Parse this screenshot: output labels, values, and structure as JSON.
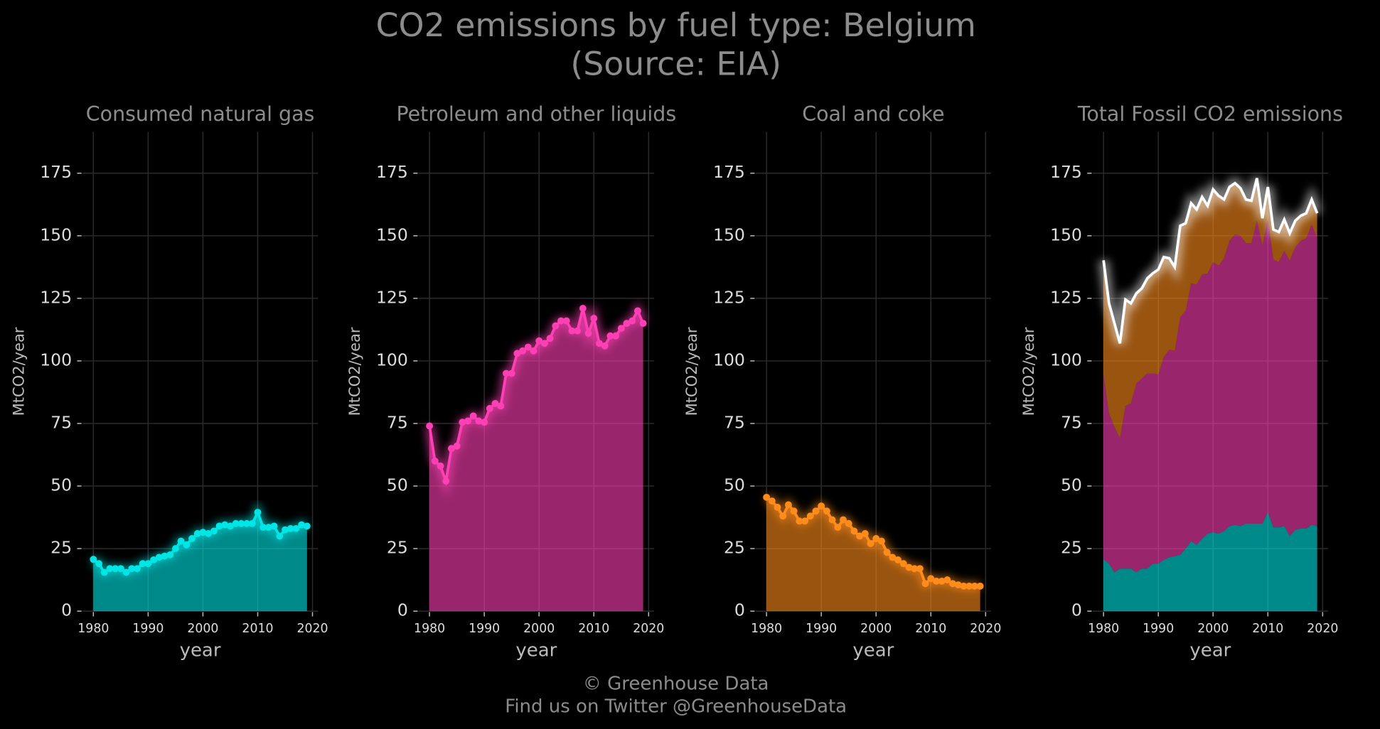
{
  "title": "CO2 emissions by fuel type: Belgium",
  "subtitle": "(Source: EIA)",
  "footer": [
    "© Greenhouse Data",
    "Find us on Twitter @GreenhouseData"
  ],
  "chart_data": [
    {
      "type": "area",
      "title": "Consumed natural gas",
      "xlabel": "year",
      "ylabel": "MtCO2/year",
      "x": [
        1980,
        1981,
        1982,
        1983,
        1984,
        1985,
        1986,
        1987,
        1988,
        1989,
        1990,
        1991,
        1992,
        1993,
        1994,
        1995,
        1996,
        1997,
        1998,
        1999,
        2000,
        2001,
        2002,
        2003,
        2004,
        2005,
        2006,
        2007,
        2008,
        2009,
        2010,
        2011,
        2012,
        2013,
        2014,
        2015,
        2016,
        2017,
        2018,
        2019
      ],
      "values": [
        20.7,
        19,
        15.5,
        17,
        17,
        17,
        15.5,
        17,
        17,
        19,
        19,
        20.5,
        21.5,
        22,
        22.5,
        25,
        28,
        26.5,
        29,
        31,
        31.5,
        31,
        32,
        34,
        34.5,
        34,
        35,
        35,
        35,
        35,
        39.5,
        33.5,
        33.5,
        34,
        30,
        32.5,
        33,
        33,
        34.5,
        34
      ],
      "color": "#00e5e5",
      "xlim": [
        1978,
        2021
      ],
      "ylim": [
        0,
        191.5
      ],
      "xticks": [
        1980,
        1990,
        2000,
        2010,
        2020
      ],
      "yticks": [
        0,
        25,
        50,
        75,
        100,
        125,
        150,
        175
      ],
      "grid": true
    },
    {
      "type": "area",
      "title": "Petroleum and other liquids",
      "xlabel": "year",
      "ylabel": "MtCO2/year",
      "x": [
        1980,
        1981,
        1982,
        1983,
        1984,
        1985,
        1986,
        1987,
        1988,
        1989,
        1990,
        1991,
        1992,
        1993,
        1994,
        1995,
        1996,
        1997,
        1998,
        1999,
        2000,
        2001,
        2002,
        2003,
        2004,
        2005,
        2006,
        2007,
        2008,
        2009,
        2010,
        2011,
        2012,
        2013,
        2014,
        2015,
        2016,
        2017,
        2018,
        2019
      ],
      "values": [
        74,
        60,
        58,
        52,
        65,
        66,
        75.5,
        76,
        78,
        76,
        75.5,
        81,
        83,
        82,
        95,
        95,
        103,
        104,
        105.5,
        104,
        108,
        107,
        109,
        114,
        116,
        116,
        112,
        112,
        121,
        111,
        117,
        107,
        106,
        110,
        110,
        113,
        115,
        116,
        120,
        115
      ],
      "color": "#ff3fb4",
      "xlim": [
        1978,
        2021
      ],
      "ylim": [
        0,
        191.5
      ],
      "xticks": [
        1980,
        1990,
        2000,
        2010,
        2020
      ],
      "yticks": [
        0,
        25,
        50,
        75,
        100,
        125,
        150,
        175
      ],
      "grid": true
    },
    {
      "type": "area",
      "title": "Coal and coke",
      "xlabel": "year",
      "ylabel": "MtCO2/year",
      "x": [
        1980,
        1981,
        1982,
        1983,
        1984,
        1985,
        1986,
        1987,
        1988,
        1989,
        1990,
        1991,
        1992,
        1993,
        1994,
        1995,
        1996,
        1997,
        1998,
        1999,
        2000,
        2001,
        2002,
        2003,
        2004,
        2005,
        2006,
        2007,
        2008,
        2009,
        2010,
        2011,
        2012,
        2013,
        2014,
        2015,
        2016,
        2017,
        2018,
        2019
      ],
      "values": [
        45.5,
        44,
        41.5,
        38,
        42.5,
        40,
        36,
        36,
        38,
        40,
        42,
        40,
        36.5,
        33.5,
        36.5,
        35,
        32,
        30,
        31,
        27,
        29,
        28,
        23.5,
        21.5,
        20.5,
        19,
        17.5,
        17,
        17,
        11,
        13,
        12,
        12,
        12.5,
        11,
        10.5,
        10,
        10,
        10,
        10
      ],
      "color": "#ff8c1a",
      "xlim": [
        1978,
        2021
      ],
      "ylim": [
        0,
        191.5
      ],
      "xticks": [
        1980,
        1990,
        2000,
        2010,
        2020
      ],
      "yticks": [
        0,
        25,
        50,
        75,
        100,
        125,
        150,
        175
      ],
      "grid": true
    },
    {
      "type": "stacked_area",
      "title": "Total Fossil CO2 emissions",
      "xlabel": "year",
      "ylabel": "MtCO2/year",
      "x": [
        1980,
        1981,
        1982,
        1983,
        1984,
        1985,
        1986,
        1987,
        1988,
        1989,
        1990,
        1991,
        1992,
        1993,
        1994,
        1995,
        1996,
        1997,
        1998,
        1999,
        2000,
        2001,
        2002,
        2003,
        2004,
        2005,
        2006,
        2007,
        2008,
        2009,
        2010,
        2011,
        2012,
        2013,
        2014,
        2015,
        2016,
        2017,
        2018,
        2019
      ],
      "series": [
        {
          "color": "#00e5e5",
          "values": [
            20.7,
            19,
            15.5,
            17,
            17,
            17,
            15.5,
            17,
            17,
            19,
            19,
            20.5,
            21.5,
            22,
            22.5,
            25,
            28,
            26.5,
            29,
            31,
            31.5,
            31,
            32,
            34,
            34.5,
            34,
            35,
            35,
            35,
            35,
            39.5,
            33.5,
            33.5,
            34,
            30,
            32.5,
            33,
            33,
            34.5,
            34
          ]
        },
        {
          "color": "#ff3fb4",
          "values": [
            74,
            60,
            58,
            52,
            65,
            66,
            75.5,
            76,
            78,
            76,
            75.5,
            81,
            83,
            82,
            95,
            95,
            103,
            104,
            105.5,
            104,
            108,
            107,
            109,
            114,
            116,
            116,
            112,
            112,
            121,
            111,
            117,
            107,
            106,
            110,
            110,
            113,
            115,
            116,
            120,
            115
          ]
        },
        {
          "color": "#ff8c1a",
          "values": [
            45.5,
            44,
            41.5,
            38,
            42.5,
            40,
            36,
            36,
            38,
            40,
            42,
            40,
            36.5,
            33.5,
            36.5,
            35,
            32,
            30,
            31,
            27,
            29,
            28,
            23.5,
            21.5,
            20.5,
            19,
            17.5,
            17,
            17,
            11,
            13,
            12,
            12,
            12.5,
            11,
            10.5,
            10,
            10,
            10,
            10
          ]
        }
      ],
      "total_line_color": "#ffffff",
      "xlim": [
        1978,
        2021
      ],
      "ylim": [
        0,
        191.5
      ],
      "xticks": [
        1980,
        1990,
        2000,
        2010,
        2020
      ],
      "yticks": [
        0,
        25,
        50,
        75,
        100,
        125,
        150,
        175
      ],
      "grid": true
    }
  ]
}
